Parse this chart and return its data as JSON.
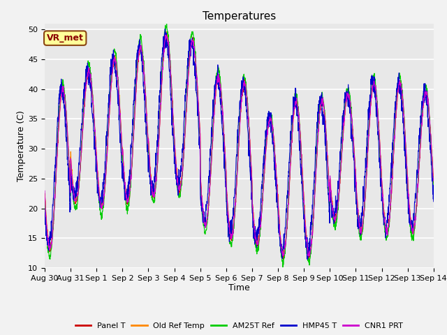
{
  "title": "Temperatures",
  "xlabel": "Time",
  "ylabel": "Temperature (C)",
  "ylim": [
    10,
    51
  ],
  "yticks": [
    10,
    15,
    20,
    25,
    30,
    35,
    40,
    45,
    50
  ],
  "fig_bg_color": "#f2f2f2",
  "plot_bg_color": "#e8e8e8",
  "annotation_text": "VR_met",
  "annotation_box_color": "#ffff99",
  "annotation_box_edge": "#8b4513",
  "legend_entries": [
    "Panel T",
    "Old Ref Temp",
    "AM25T Ref",
    "HMP45 T",
    "CNR1 PRT"
  ],
  "line_colors": [
    "#cc0000",
    "#ff8800",
    "#00cc00",
    "#0000cc",
    "#cc00cc"
  ],
  "line_width": 0.8,
  "n_days": 15,
  "title_fontsize": 11,
  "axis_label_fontsize": 9,
  "tick_fontsize": 8,
  "tick_labels": [
    "Aug 30",
    "Aug 31",
    "Sep 1",
    "Sep 2",
    "Sep 3",
    "Sep 4",
    "Sep 5",
    "Sep 6",
    "Sep 7",
    "Sep 8",
    "Sep 9",
    "Sep 10",
    "Sep 11",
    "Sep 12",
    "Sep 13",
    "Sep 14"
  ],
  "daily_maxs": [
    40,
    43,
    45,
    47,
    49,
    48,
    42,
    41,
    35,
    38,
    38,
    39,
    41,
    41,
    39.5
  ],
  "daily_mins": [
    13,
    21,
    20,
    21,
    22,
    23,
    17,
    15,
    14,
    12,
    12,
    18,
    16,
    16,
    16
  ]
}
